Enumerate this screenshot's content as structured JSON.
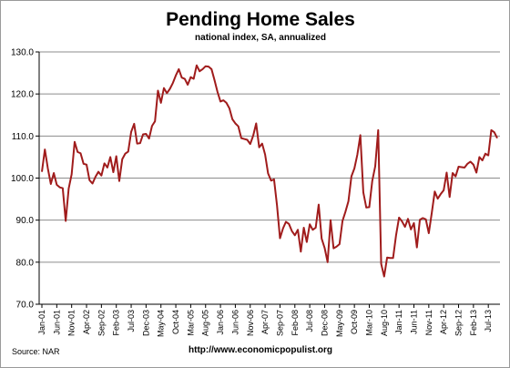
{
  "chart_data": {
    "type": "line",
    "title": "Pending Home Sales",
    "subtitle": "national index, SA, annualized",
    "xlabel": "",
    "ylabel": "",
    "ylim": [
      70.0,
      130.0
    ],
    "yticks": [
      "70.0",
      "80.0",
      "90.0",
      "100.0",
      "110.0",
      "120.0",
      "130.0"
    ],
    "grid": true,
    "legend": "none",
    "line_color": "#a01c1c",
    "start": "Jan-01",
    "x_tick_labels": [
      "Jan-01",
      "Jun-01",
      "Nov-01",
      "Apr-02",
      "Sep-02",
      "Feb-03",
      "Jul-03",
      "Dec-03",
      "May-04",
      "Oct-04",
      "Mar-05",
      "Aug-05",
      "Jan-06",
      "Jun-06",
      "Nov-06",
      "Apr-07",
      "Sep-07",
      "Feb-08",
      "Jul-08",
      "Dec-08",
      "May-09",
      "Oct-09",
      "Mar-10",
      "Aug-10",
      "Jan-11",
      "Jun-11",
      "Nov-11",
      "Apr-12",
      "Sep-12",
      "Feb-13",
      "Jul-13"
    ],
    "series": [
      {
        "values": [
          101.5,
          106.8,
          102.3,
          98.6,
          101.2,
          98.4,
          97.8,
          97.6,
          89.8,
          97.5,
          100.9,
          108.6,
          106.2,
          105.9,
          103.4,
          103.2,
          99.5,
          98.7,
          100.3,
          101.5,
          100.6,
          103.5,
          102.5,
          105.0,
          101.4,
          105.2,
          99.3,
          104.5,
          105.8,
          106.3,
          111.0,
          112.9,
          108.2,
          108.3,
          110.4,
          110.5,
          109.4,
          112.4,
          113.5,
          120.8,
          117.9,
          121.4,
          120.2,
          121.2,
          122.6,
          124.4,
          125.9,
          123.9,
          123.6,
          122.2,
          124.0,
          123.6,
          126.8,
          125.4,
          125.9,
          126.6,
          126.5,
          125.9,
          123.3,
          120.5,
          118.2,
          118.5,
          117.9,
          116.6,
          114.0,
          113.0,
          112.3,
          109.5,
          109.3,
          109.1,
          108.1,
          110.1,
          113.0,
          107.3,
          108.2,
          105.6,
          101.1,
          99.4,
          99.7,
          93.5,
          85.7,
          88.0,
          89.6,
          89.1,
          87.4,
          86.4,
          87.7,
          82.5,
          88.2,
          84.8,
          89.0,
          87.7,
          88.2,
          93.7,
          85.6,
          83.4,
          80.0,
          90.0,
          83.3,
          83.7,
          84.3,
          89.8,
          92.0,
          94.5,
          100.4,
          102.3,
          105.6,
          110.2,
          96.6,
          93.0,
          93.1,
          99.3,
          102.8,
          111.4,
          79.6,
          76.6,
          81.1,
          81.0,
          81.0,
          86.4,
          90.6,
          89.7,
          88.4,
          90.3,
          87.8,
          89.3,
          83.5,
          90.1,
          90.5,
          90.2,
          86.9,
          91.7,
          96.8,
          95.1,
          96.2,
          97.1,
          101.3,
          95.5,
          101.2,
          100.4,
          102.7,
          102.6,
          102.5,
          103.4,
          103.9,
          103.2,
          101.3,
          105.0,
          104.2,
          105.8,
          105.4,
          111.4,
          110.9,
          109.5
        ]
      }
    ]
  },
  "footer": {
    "source": "Source:  NAR",
    "url": "http://www.economicpopulist.org"
  }
}
